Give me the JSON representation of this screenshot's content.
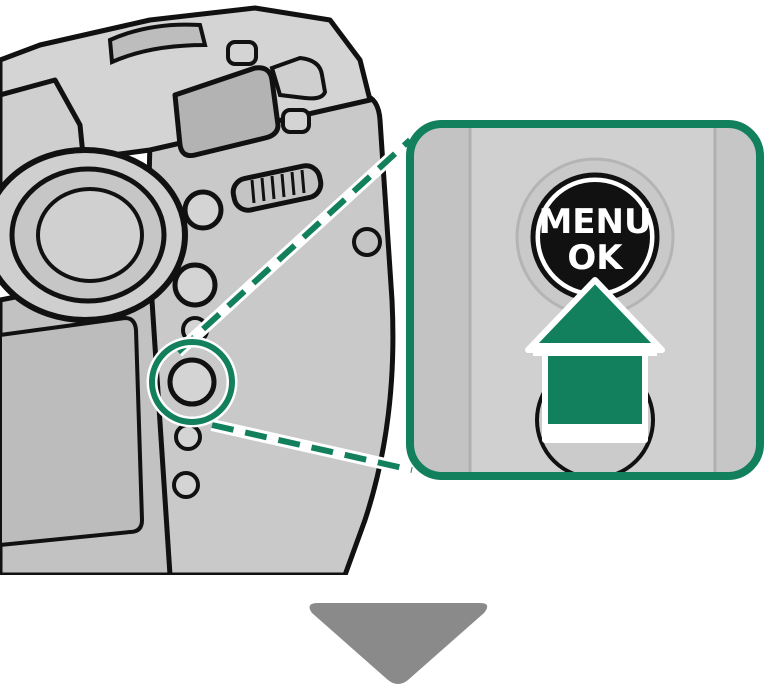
{
  "diagram": {
    "button_label_line1": "MENU",
    "button_label_line2": "OK",
    "icons": {
      "press_arrow": "arrow-up-icon",
      "next_step": "triangle-down-icon"
    },
    "colors": {
      "accent": "#12805c",
      "body_gray": "#c9c9c9",
      "body_shadow": "#a9a9a9",
      "outline": "#111111",
      "next_arrow": "#8a8a8a"
    }
  }
}
